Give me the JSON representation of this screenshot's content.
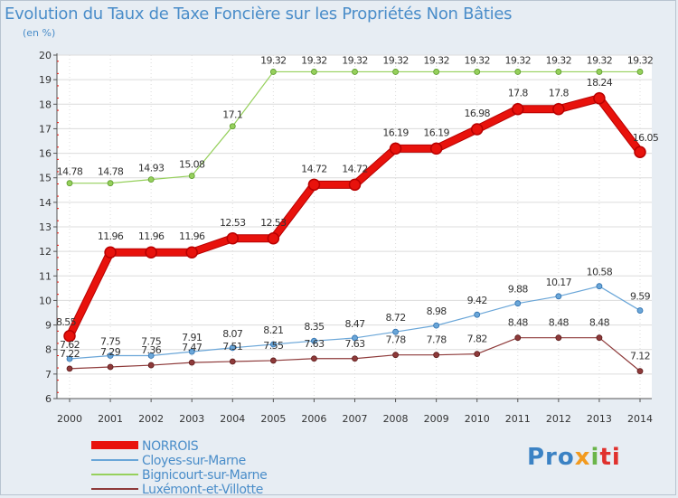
{
  "title": "Evolution du Taux de Taxe Foncière sur les Propriétés Non Bâties",
  "unit_label": "(en %)",
  "logo": {
    "text": "Proxiti",
    "parts": [
      "Pro",
      "x",
      "i",
      "ti"
    ]
  },
  "chart_data": {
    "type": "line",
    "title": "Evolution du Taux de Taxe Foncière sur les Propriétés Non Bâties",
    "ylabel": "(en %)",
    "xlabel": "",
    "x": [
      "2000",
      "2001",
      "2002",
      "2003",
      "2004",
      "2005",
      "2006",
      "2007",
      "2008",
      "2009",
      "2010",
      "2011",
      "2012",
      "2013",
      "2014"
    ],
    "ylim": [
      6,
      20
    ],
    "yticks": [
      6,
      7,
      8,
      9,
      10,
      11,
      12,
      13,
      14,
      15,
      16,
      17,
      18,
      19,
      20
    ],
    "ytick_labels": [
      "6",
      "7",
      "8",
      "9",
      "10",
      "11",
      "12",
      "13",
      "14",
      "15",
      "16",
      "17",
      "18",
      "19",
      "20"
    ],
    "legend_position": "bottom-left",
    "series": [
      {
        "name": "NORROIS",
        "color": "#e8120c",
        "dark": "#b80000",
        "width": 7,
        "marker": 6,
        "values": [
          8.55,
          11.96,
          11.96,
          11.96,
          12.53,
          12.53,
          14.72,
          14.72,
          16.19,
          16.19,
          16.98,
          17.8,
          17.8,
          18.24,
          16.05
        ],
        "labels": [
          "8.55",
          "11.96",
          "11.96",
          "11.96",
          "12.53",
          "12.53",
          "14.72",
          "14.72",
          "16.19",
          "16.19",
          "16.98",
          "17.8",
          "17.8",
          "18.24",
          "16.05"
        ]
      },
      {
        "name": "Cloyes-sur-Marne",
        "color": "#6aa6d8",
        "dark": "#2d6fae",
        "width": 1.2,
        "marker": 3,
        "values": [
          7.62,
          7.75,
          7.75,
          7.91,
          8.07,
          8.21,
          8.35,
          8.47,
          8.72,
          8.98,
          9.42,
          9.88,
          10.17,
          10.58,
          9.59
        ],
        "labels": [
          "7.62",
          "7.75",
          "7.75",
          "7.91",
          "8.07",
          "8.21",
          "8.35",
          "8.47",
          "8.72",
          "8.98",
          "9.42",
          "9.88",
          "10.17",
          "10.58",
          "9.59"
        ]
      },
      {
        "name": "Bignicourt-sur-Marne",
        "color": "#96d05c",
        "dark": "#5a9a2a",
        "width": 1.2,
        "marker": 3,
        "values": [
          14.78,
          14.78,
          14.93,
          15.08,
          17.1,
          19.32,
          19.32,
          19.32,
          19.32,
          19.32,
          19.32,
          19.32,
          19.32,
          19.32,
          19.32
        ],
        "labels": [
          "14.78",
          "14.78",
          "14.93",
          "15.08",
          "17.1",
          "19.32",
          "19.32",
          "19.32",
          "19.32",
          "19.32",
          "19.32",
          "19.32",
          "19.32",
          "19.32",
          "19.32"
        ]
      },
      {
        "name": "Luxémont-et-Villotte",
        "color": "#8e3a3a",
        "dark": "#5c1a1a",
        "width": 1.2,
        "marker": 3,
        "values": [
          7.22,
          7.29,
          7.36,
          7.47,
          7.51,
          7.55,
          7.63,
          7.63,
          7.78,
          7.78,
          7.82,
          8.48,
          8.48,
          8.48,
          7.12
        ],
        "labels": [
          "7.22",
          "7.29",
          "7.36",
          "7.47",
          "7.51",
          "7.55",
          "7.63",
          "7.63",
          "7.78",
          "7.78",
          "7.82",
          "8.48",
          "8.48",
          "8.48",
          "7.12"
        ]
      }
    ]
  }
}
